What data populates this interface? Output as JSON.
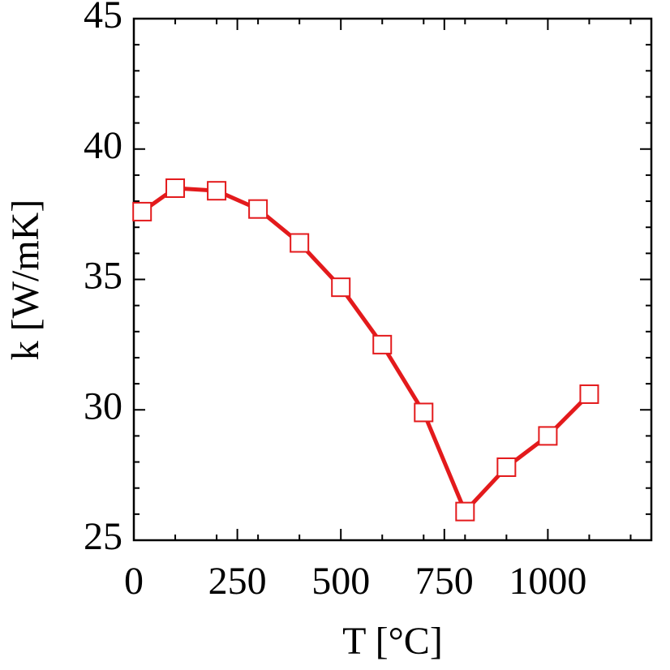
{
  "chart_data": {
    "type": "line",
    "xlabel": "T [°C]",
    "ylabel": "k [W/mK]",
    "x": [
      20,
      100,
      200,
      300,
      400,
      500,
      600,
      700,
      800,
      900,
      1000,
      1100
    ],
    "series": [
      {
        "color": "#e31a1c",
        "values": [
          37.6,
          38.5,
          38.4,
          37.7,
          36.4,
          34.7,
          32.5,
          29.9,
          26.1,
          27.8,
          29.0,
          30.6
        ]
      }
    ],
    "xlim": [
      0,
      1250
    ],
    "xticks": [
      0,
      250,
      500,
      750,
      1000
    ],
    "xminorticks": [
      100,
      200,
      300,
      400,
      600,
      700,
      800,
      900,
      1100,
      1200
    ],
    "ylim": [
      25,
      45
    ],
    "yticks": [
      25,
      30,
      35,
      40,
      45
    ],
    "yminorticks": [
      26,
      27,
      28,
      29,
      31,
      32,
      33,
      34,
      36,
      37,
      38,
      39,
      41,
      42,
      43,
      44
    ]
  }
}
